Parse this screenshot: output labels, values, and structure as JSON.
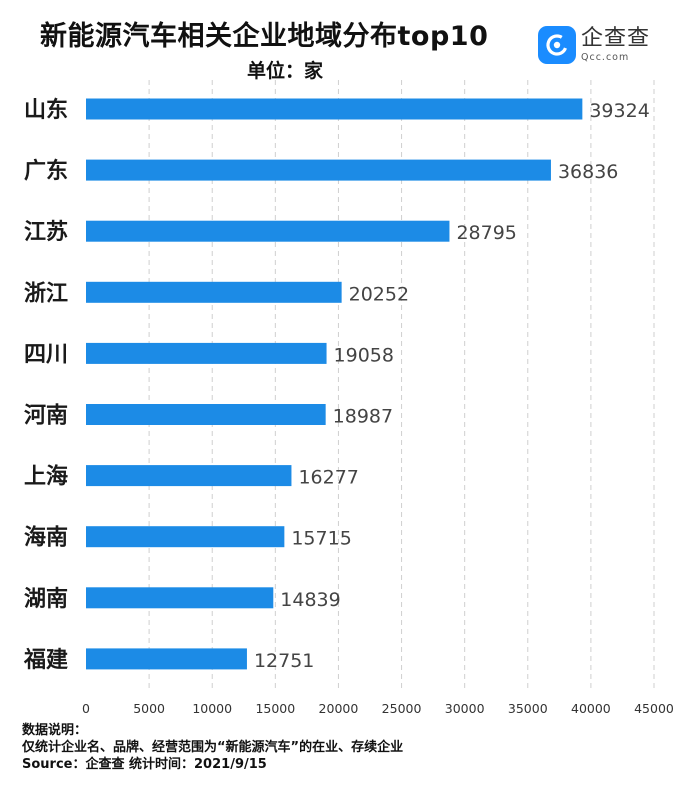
{
  "title": "新能源汽车相关企业地域分布top10",
  "subtitle": "单位：家",
  "logo": {
    "cn": "企查查",
    "en": "Qcc.com"
  },
  "colors": {
    "bar": "#1c8be6",
    "grid": "#cfcfcf",
    "text": "#1a1a1a",
    "value": "#444444"
  },
  "chart_data": {
    "type": "bar",
    "orientation": "horizontal",
    "title": "新能源汽车相关企业地域分布top10",
    "subtitle": "单位：家",
    "categories": [
      "山东",
      "广东",
      "江苏",
      "浙江",
      "四川",
      "河南",
      "上海",
      "海南",
      "湖南",
      "福建"
    ],
    "values": [
      39324,
      36836,
      28795,
      20252,
      19058,
      18987,
      16277,
      15715,
      14839,
      12751
    ],
    "xlim": [
      0,
      45000
    ],
    "xticks": [
      0,
      5000,
      10000,
      15000,
      20000,
      25000,
      30000,
      35000,
      40000,
      45000
    ],
    "grid": "vertical dashed",
    "data_labels": true
  },
  "notes": {
    "heading": "数据说明：",
    "line1": "仅统计企业名、品牌、经营范围为“新能源汽车”的在业、存续企业",
    "line2": "Source：企查查     统计时间：2021/9/15"
  }
}
